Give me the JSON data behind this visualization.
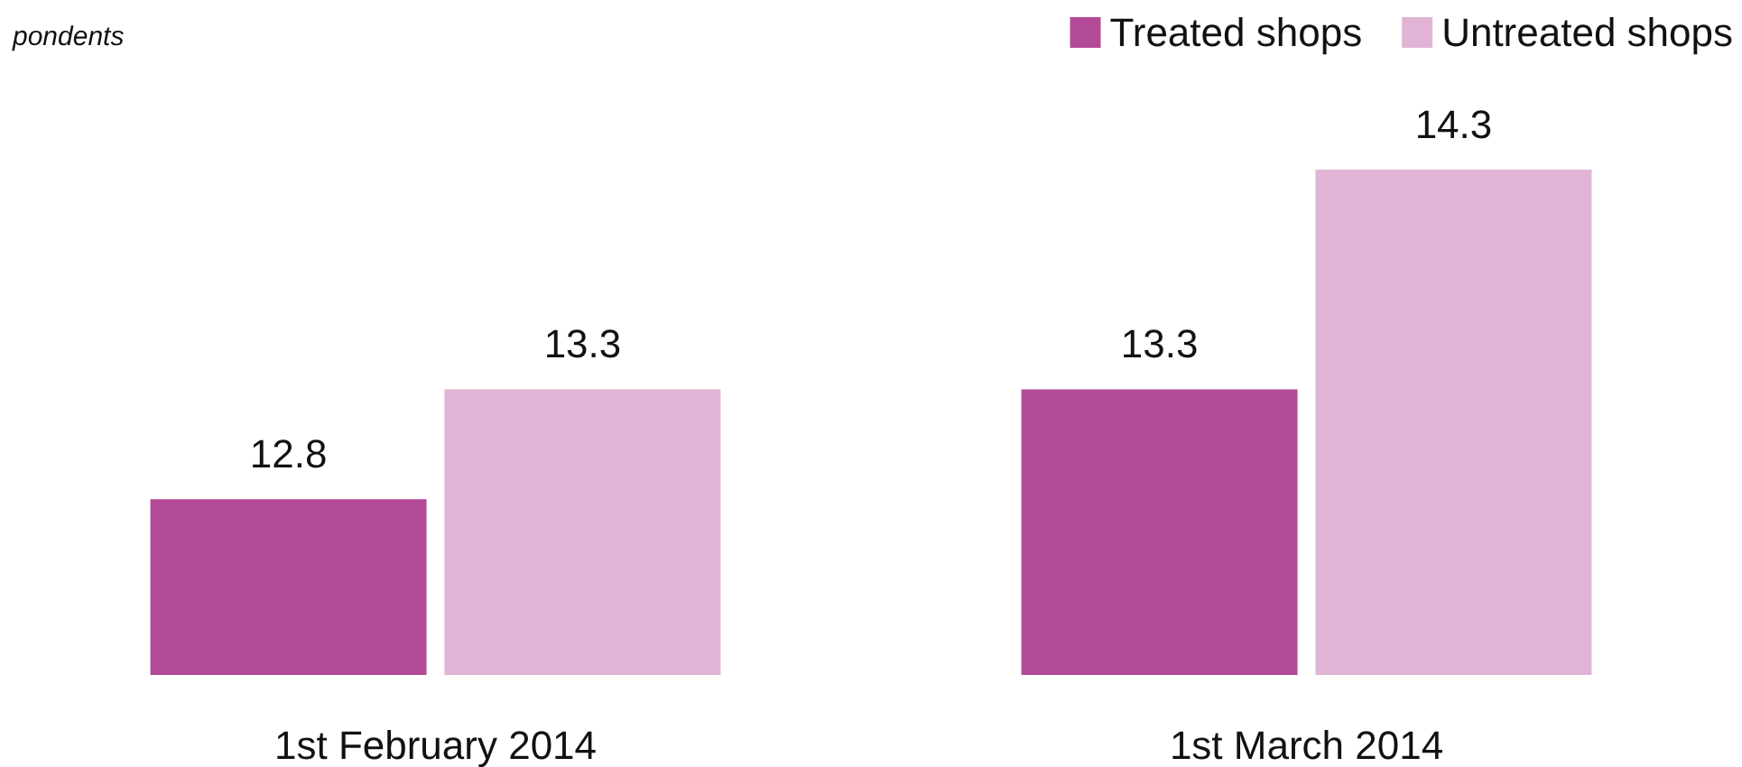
{
  "chart_data": {
    "type": "bar",
    "ylabel": "pondents",
    "categories": [
      "1st February 2014",
      "1st March 2014"
    ],
    "series": [
      {
        "name": "Treated shops",
        "color": "#b24a98",
        "values": [
          12.8,
          13.3
        ]
      },
      {
        "name": "Untreated shops",
        "color": "#e1b4d6",
        "values": [
          13.3,
          14.3
        ]
      }
    ],
    "ylim": [
      12,
      14.3
    ],
    "tick_labels": "x",
    "data_labels": true,
    "grid": false,
    "legend": "top right"
  }
}
